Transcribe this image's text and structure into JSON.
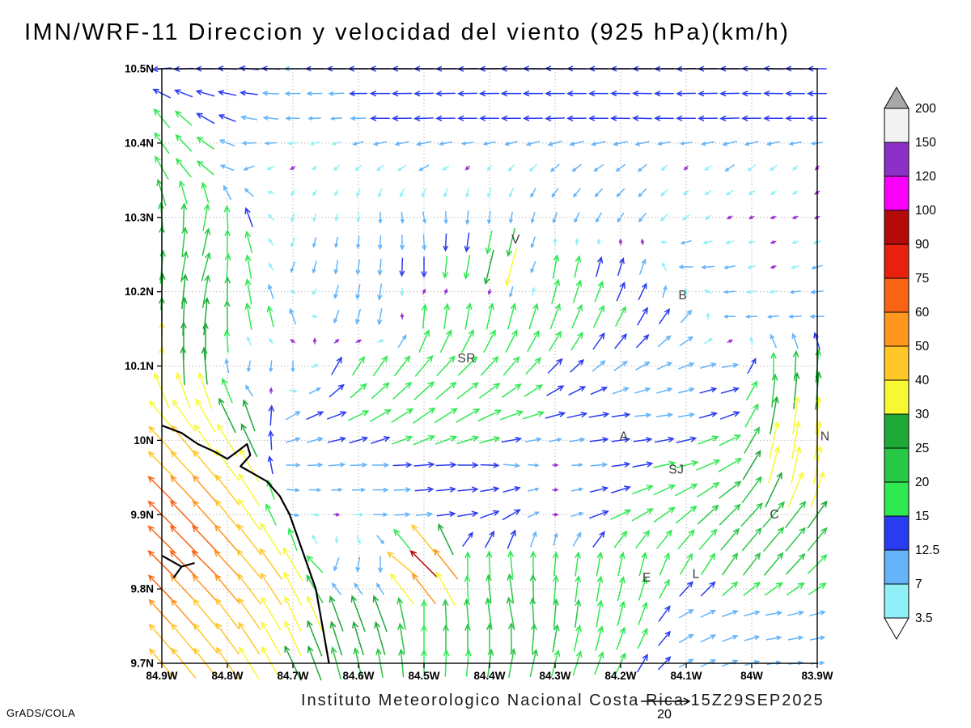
{
  "title": "IMN/WRF-11 Direccion y velocidad del viento (925 hPa)(km/h)",
  "footer": {
    "institute": "Instituto Meteorologico Nacional Costa Rica 15Z29SEP2025",
    "credit": "GrADS/COLA",
    "ref_vector_label": "20",
    "ref_vector_speed": 20
  },
  "chart_data": {
    "type": "vector_field",
    "title": "IMN/WRF-11 Direccion y velocidad del viento (925 hPa)(km/h)",
    "xlabel": "",
    "ylabel": "",
    "units": "km/h",
    "grid": true,
    "lon_range": [
      84.9,
      83.9
    ],
    "lat_range": [
      9.7,
      10.5
    ],
    "x_ticks": [
      {
        "v": 84.9,
        "label": "84.9W"
      },
      {
        "v": 84.8,
        "label": "84.8W"
      },
      {
        "v": 84.7,
        "label": "84.7W"
      },
      {
        "v": 84.6,
        "label": "84.6W"
      },
      {
        "v": 84.5,
        "label": "84.5W"
      },
      {
        "v": 84.4,
        "label": "84.4W"
      },
      {
        "v": 84.3,
        "label": "84.3W"
      },
      {
        "v": 84.2,
        "label": "84.2W"
      },
      {
        "v": 84.1,
        "label": "84.1W"
      },
      {
        "v": 84.0,
        "label": "84W"
      },
      {
        "v": 83.9,
        "label": "83.9W"
      }
    ],
    "y_ticks": [
      {
        "v": 9.7,
        "label": "9.7N"
      },
      {
        "v": 9.8,
        "label": "9.8N"
      },
      {
        "v": 9.9,
        "label": "9.9N"
      },
      {
        "v": 10.0,
        "label": "10N"
      },
      {
        "v": 10.1,
        "label": "10.1N"
      },
      {
        "v": 10.2,
        "label": "10.2N"
      },
      {
        "v": 10.3,
        "label": "10.3N"
      },
      {
        "v": 10.4,
        "label": "10.4N"
      },
      {
        "v": 10.5,
        "label": "10.5N"
      }
    ],
    "legend": {
      "position": "right",
      "levels": [
        3.5,
        7,
        12.5,
        15,
        20,
        25,
        30,
        40,
        50,
        60,
        75,
        90,
        100,
        120,
        150,
        200
      ],
      "colors": [
        "#ffffff",
        "#8ff0f8",
        "#64b4fa",
        "#2a3cf0",
        "#30e852",
        "#28c846",
        "#1eaa37",
        "#f8f832",
        "#ffc828",
        "#ff9620",
        "#f86414",
        "#e82010",
        "#b40a0a",
        "#fa00fa",
        "#8c30c8",
        "#f2f2f2",
        "#a8a8a8"
      ],
      "calm_color": "#9b30d0"
    },
    "stations": [
      {
        "label": "V",
        "lon": 84.36,
        "lat": 10.265
      },
      {
        "label": "B",
        "lon": 84.105,
        "lat": 10.19
      },
      {
        "label": "SR",
        "lon": 84.435,
        "lat": 10.105
      },
      {
        "label": "A",
        "lon": 84.195,
        "lat": 10.0
      },
      {
        "label": "N",
        "lon": 83.888,
        "lat": 10.0
      },
      {
        "label": "SJ",
        "lon": 84.115,
        "lat": 9.955
      },
      {
        "label": "C",
        "lon": 83.965,
        "lat": 9.895
      },
      {
        "label": "E",
        "lon": 84.16,
        "lat": 9.81
      },
      {
        "label": "L",
        "lon": 84.085,
        "lat": 9.815
      }
    ],
    "coastline": [
      [
        [
          84.9,
          10.02
        ],
        [
          84.87,
          10.01
        ],
        [
          84.845,
          9.995
        ],
        [
          84.82,
          9.985
        ],
        [
          84.8,
          9.975
        ],
        [
          84.785,
          9.985
        ],
        [
          84.77,
          9.995
        ],
        [
          84.765,
          9.98
        ],
        [
          84.78,
          9.965
        ],
        [
          84.76,
          9.955
        ],
        [
          84.74,
          9.945
        ],
        [
          84.72,
          9.925
        ],
        [
          84.705,
          9.9
        ],
        [
          84.695,
          9.875
        ],
        [
          84.685,
          9.85
        ],
        [
          84.675,
          9.825
        ],
        [
          84.665,
          9.8
        ],
        [
          84.66,
          9.775
        ],
        [
          84.655,
          9.75
        ],
        [
          84.65,
          9.725
        ],
        [
          84.645,
          9.7
        ]
      ],
      [
        [
          84.9,
          9.845
        ],
        [
          84.87,
          9.83
        ],
        [
          84.85,
          9.835
        ]
      ],
      [
        [
          84.87,
          9.83
        ],
        [
          84.882,
          9.815
        ]
      ]
    ],
    "field": {
      "lat_start": 10.5,
      "lat_step": 0.066667,
      "lon_start": 84.9,
      "lon_step": 0.066667,
      "rows": [
        [
          [
            265,
            14
          ],
          [
            270,
            14
          ],
          [
            275,
            14
          ],
          [
            270,
            12
          ],
          [
            270,
            14
          ],
          [
            270,
            15
          ],
          [
            270,
            14
          ],
          [
            268,
            14
          ],
          [
            270,
            15
          ],
          [
            272,
            14
          ],
          [
            270,
            14
          ],
          [
            270,
            14
          ],
          [
            268,
            14
          ],
          [
            270,
            14
          ],
          [
            272,
            14
          ],
          [
            270,
            14
          ]
        ],
        [
          [
            320,
            18
          ],
          [
            300,
            15
          ],
          [
            280,
            12
          ],
          [
            270,
            10
          ],
          [
            265,
            8
          ],
          [
            270,
            14
          ],
          [
            268,
            14
          ],
          [
            270,
            14
          ],
          [
            270,
            14
          ],
          [
            268,
            14
          ],
          [
            270,
            14
          ],
          [
            272,
            14
          ],
          [
            270,
            14
          ],
          [
            268,
            14
          ],
          [
            270,
            14
          ],
          [
            270,
            14
          ]
        ],
        [
          [
            330,
            20
          ],
          [
            310,
            16
          ],
          [
            250,
            8
          ],
          [
            235,
            3
          ],
          [
            225,
            5
          ],
          [
            230,
            6
          ],
          [
            240,
            8
          ],
          [
            225,
            3
          ],
          [
            220,
            6
          ],
          [
            230,
            8
          ],
          [
            235,
            8
          ],
          [
            230,
            8
          ],
          [
            225,
            3
          ],
          [
            235,
            8
          ],
          [
            230,
            6
          ],
          [
            225,
            3
          ]
        ],
        [
          [
            355,
            22
          ],
          [
            10,
            20
          ],
          [
            340,
            15
          ],
          [
            200,
            6
          ],
          [
            190,
            5
          ],
          [
            180,
            8
          ],
          [
            170,
            8
          ],
          [
            185,
            10
          ],
          [
            190,
            8
          ],
          [
            200,
            8
          ],
          [
            210,
            8
          ],
          [
            220,
            8
          ],
          [
            230,
            6
          ],
          [
            240,
            3
          ],
          [
            250,
            3
          ],
          [
            245,
            3
          ]
        ],
        [
          [
            5,
            25
          ],
          [
            15,
            22
          ],
          [
            350,
            18
          ],
          [
            200,
            8
          ],
          [
            190,
            10
          ],
          [
            185,
            12
          ],
          [
            180,
            15
          ],
          [
            190,
            18
          ],
          [
            195,
            35
          ],
          [
            10,
            18
          ],
          [
            15,
            15
          ],
          [
            20,
            12
          ],
          [
            270,
            10
          ],
          [
            260,
            8
          ],
          [
            250,
            3
          ],
          [
            255,
            8
          ]
        ],
        [
          [
            0,
            30
          ],
          [
            5,
            28
          ],
          [
            350,
            20
          ],
          [
            340,
            12
          ],
          [
            200,
            10
          ],
          [
            190,
            12
          ],
          [
            5,
            18
          ],
          [
            10,
            20
          ],
          [
            15,
            20
          ],
          [
            20,
            20
          ],
          [
            25,
            18
          ],
          [
            30,
            15
          ],
          [
            40,
            12
          ],
          [
            270,
            8
          ],
          [
            265,
            8
          ],
          [
            270,
            10
          ]
        ],
        [
          [
            0,
            32
          ],
          [
            355,
            28
          ],
          [
            190,
            8
          ],
          [
            180,
            8
          ],
          [
            30,
            15
          ],
          [
            35,
            18
          ],
          [
            40,
            20
          ],
          [
            45,
            20
          ],
          [
            40,
            18
          ],
          [
            45,
            15
          ],
          [
            50,
            12
          ],
          [
            60,
            12
          ],
          [
            70,
            12
          ],
          [
            80,
            12
          ],
          [
            0,
            20
          ],
          [
            5,
            25
          ]
        ],
        [
          [
            320,
            40
          ],
          [
            330,
            35
          ],
          [
            340,
            25
          ],
          [
            60,
            12
          ],
          [
            70,
            15
          ],
          [
            60,
            18
          ],
          [
            55,
            20
          ],
          [
            60,
            20
          ],
          [
            70,
            18
          ],
          [
            75,
            15
          ],
          [
            80,
            15
          ],
          [
            85,
            12
          ],
          [
            80,
            12
          ],
          [
            70,
            15
          ],
          [
            10,
            30
          ],
          [
            5,
            35
          ]
        ],
        [
          [
            315,
            50
          ],
          [
            320,
            45
          ],
          [
            330,
            30
          ],
          [
            90,
            10
          ],
          [
            85,
            12
          ],
          [
            90,
            12
          ],
          [
            85,
            15
          ],
          [
            90,
            15
          ],
          [
            95,
            12
          ],
          [
            90,
            3
          ],
          [
            85,
            12
          ],
          [
            80,
            15
          ],
          [
            75,
            18
          ],
          [
            60,
            20
          ],
          [
            15,
            35
          ],
          [
            10,
            40
          ]
        ],
        [
          [
            315,
            75
          ],
          [
            318,
            60
          ],
          [
            325,
            40
          ],
          [
            100,
            8
          ],
          [
            95,
            3
          ],
          [
            90,
            10
          ],
          [
            85,
            12
          ],
          [
            80,
            15
          ],
          [
            60,
            15
          ],
          [
            90,
            3
          ],
          [
            70,
            15
          ],
          [
            60,
            18
          ],
          [
            50,
            20
          ],
          [
            45,
            22
          ],
          [
            40,
            25
          ],
          [
            35,
            25
          ]
        ],
        [
          [
            315,
            68
          ],
          [
            315,
            62
          ],
          [
            320,
            50
          ],
          [
            330,
            40
          ],
          [
            200,
            10
          ],
          [
            180,
            12
          ],
          [
            315,
            100
          ],
          [
            0,
            18
          ],
          [
            355,
            20
          ],
          [
            5,
            18
          ],
          [
            10,
            18
          ],
          [
            15,
            18
          ],
          [
            30,
            18
          ],
          [
            35,
            20
          ],
          [
            40,
            22
          ],
          [
            45,
            20
          ]
        ],
        [
          [
            318,
            55
          ],
          [
            320,
            50
          ],
          [
            325,
            45
          ],
          [
            335,
            35
          ],
          [
            340,
            28
          ],
          [
            340,
            30
          ],
          [
            0,
            20
          ],
          [
            355,
            22
          ],
          [
            350,
            25
          ],
          [
            5,
            22
          ],
          [
            10,
            20
          ],
          [
            20,
            18
          ],
          [
            60,
            12
          ],
          [
            70,
            12
          ],
          [
            80,
            12
          ],
          [
            75,
            12
          ]
        ],
        [
          [
            320,
            45
          ],
          [
            322,
            45
          ],
          [
            328,
            40
          ],
          [
            335,
            30
          ],
          [
            345,
            25
          ],
          [
            350,
            22
          ],
          [
            0,
            20
          ],
          [
            5,
            20
          ],
          [
            10,
            22
          ],
          [
            15,
            20
          ],
          [
            20,
            18
          ],
          [
            30,
            15
          ],
          [
            60,
            12
          ],
          [
            70,
            12
          ],
          [
            80,
            10
          ],
          [
            85,
            10
          ]
        ]
      ]
    }
  }
}
